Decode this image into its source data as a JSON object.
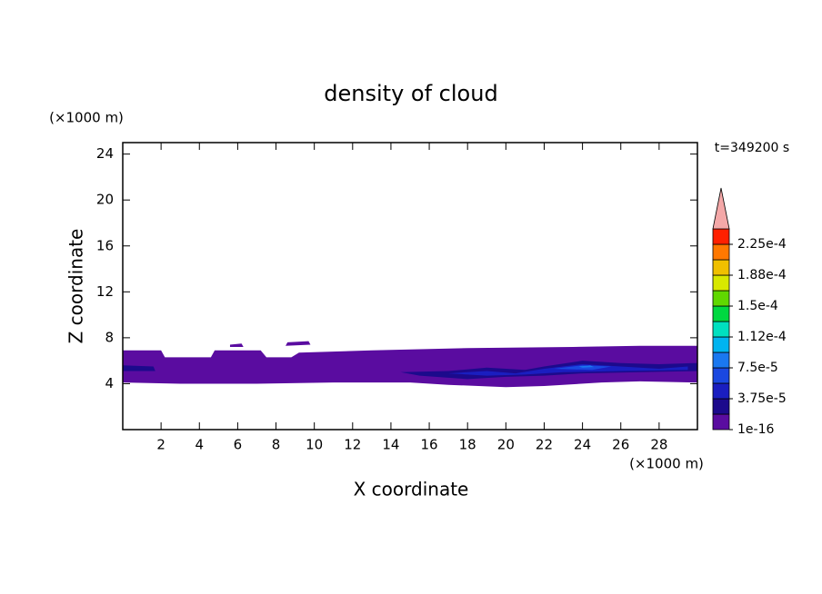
{
  "chart_data": {
    "type": "contour",
    "title": "density of cloud",
    "x_label": "X coordinate",
    "y_label": "Z coordinate",
    "x_unit": "(×1000 m)",
    "y_unit": "(×1000 m)",
    "annotation": "t=349200 s",
    "xlim": [
      0,
      30
    ],
    "ylim": [
      0,
      25
    ],
    "xticks": [
      2,
      4,
      6,
      8,
      10,
      12,
      14,
      16,
      18,
      20,
      22,
      24,
      26,
      28
    ],
    "yticks": [
      4,
      8,
      12,
      16,
      20,
      24
    ],
    "clim": [
      0,
      0.00024375
    ],
    "colors": [
      "#5a0ca0",
      "#1c0a8c",
      "#1a1ec0",
      "#1a48e0",
      "#1a78f0",
      "#00b4f0",
      "#00e0c0",
      "#00d840",
      "#60d800",
      "#d8e800",
      "#f0c000",
      "#ff7800",
      "#ff2000"
    ],
    "extend_color": "#f4a8a8",
    "cticks": [
      {
        "value": 1e-16,
        "label": "1e-16"
      },
      {
        "value": 3.75e-05,
        "label": "3.75e-5"
      },
      {
        "value": 7.5e-05,
        "label": "7.5e-5"
      },
      {
        "value": 0.0001125,
        "label": "1.12e-4"
      },
      {
        "value": 0.00015,
        "label": "1.5e-4"
      },
      {
        "value": 0.0001875,
        "label": "1.88e-4"
      },
      {
        "value": 0.000225,
        "label": "2.25e-4"
      }
    ],
    "regions": [
      {
        "value": 1e-05,
        "points": [
          [
            0,
            6.9
          ],
          [
            2,
            6.9
          ],
          [
            2.2,
            6.3
          ],
          [
            4.6,
            6.3
          ],
          [
            4.8,
            6.9
          ],
          [
            7.2,
            6.9
          ],
          [
            7.5,
            6.3
          ],
          [
            8.8,
            6.3
          ],
          [
            9.2,
            6.7
          ],
          [
            13,
            6.9
          ],
          [
            18,
            7.1
          ],
          [
            23.5,
            7.2
          ],
          [
            27,
            7.3
          ],
          [
            30,
            7.3
          ],
          [
            30,
            4.1
          ],
          [
            27,
            4.2
          ],
          [
            25,
            4.1
          ],
          [
            22,
            3.8
          ],
          [
            20,
            3.7
          ],
          [
            17,
            3.9
          ],
          [
            15,
            4.1
          ],
          [
            11,
            4.1
          ],
          [
            7,
            4.0
          ],
          [
            3,
            4.0
          ],
          [
            0,
            4.1
          ]
        ]
      },
      {
        "value": 1e-05,
        "points": [
          [
            5.6,
            7.4
          ],
          [
            6.2,
            7.5
          ],
          [
            6.3,
            7.2
          ],
          [
            5.6,
            7.2
          ]
        ]
      },
      {
        "value": 1e-05,
        "points": [
          [
            8.6,
            7.6
          ],
          [
            9.7,
            7.7
          ],
          [
            9.8,
            7.4
          ],
          [
            8.5,
            7.3
          ]
        ]
      },
      {
        "value": 3e-05,
        "points": [
          [
            0,
            5.6
          ],
          [
            1.6,
            5.5
          ],
          [
            1.7,
            5.1
          ],
          [
            0,
            5.1
          ]
        ]
      },
      {
        "value": 3e-05,
        "points": [
          [
            14.5,
            5.0
          ],
          [
            17,
            5.1
          ],
          [
            19,
            5.4
          ],
          [
            21,
            5.2
          ],
          [
            22,
            5.5
          ],
          [
            24,
            6.0
          ],
          [
            26,
            5.8
          ],
          [
            28,
            5.7
          ],
          [
            30,
            5.8
          ],
          [
            30,
            5.1
          ],
          [
            27,
            5.0
          ],
          [
            24,
            4.9
          ],
          [
            22,
            4.7
          ],
          [
            20,
            4.6
          ],
          [
            18,
            4.4
          ],
          [
            15.5,
            4.7
          ]
        ]
      },
      {
        "value": 4e-05,
        "points": [
          [
            17,
            4.9
          ],
          [
            19,
            5.1
          ],
          [
            20.5,
            4.9
          ],
          [
            22,
            5.3
          ],
          [
            24,
            5.7
          ],
          [
            26,
            5.5
          ],
          [
            28,
            5.3
          ],
          [
            29.5,
            5.5
          ],
          [
            29.5,
            5.2
          ],
          [
            26,
            5.1
          ],
          [
            23,
            5.0
          ],
          [
            21,
            4.8
          ],
          [
            19,
            4.7
          ]
        ]
      },
      {
        "value": 6e-05,
        "points": [
          [
            22.5,
            5.3
          ],
          [
            24,
            5.6
          ],
          [
            25.5,
            5.5
          ],
          [
            24.5,
            5.2
          ]
        ]
      },
      {
        "value": 8e-05,
        "points": [
          [
            23.8,
            5.5
          ],
          [
            24.4,
            5.6
          ],
          [
            24.6,
            5.45
          ],
          [
            24,
            5.4
          ]
        ]
      }
    ]
  }
}
